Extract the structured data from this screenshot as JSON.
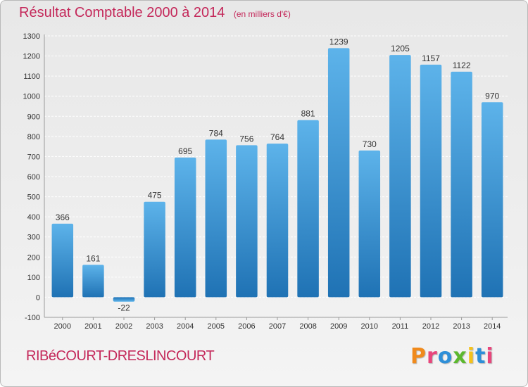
{
  "header": {
    "title": "Résultat Comptable 2000 à 2014",
    "subtitle": "(en milliers d'€)"
  },
  "footer": {
    "commune": "RIBéCOURT-DRESLINCOURT",
    "logo_text": "Proxiti",
    "logo_colors": [
      "#f08a1c",
      "#e8467c",
      "#2e8fd8",
      "#5cb82e",
      "#f5c21b",
      "#2e8fd8",
      "#e8467c"
    ]
  },
  "colors": {
    "bar_top": "#5db3ea",
    "bar_bottom": "#1f72b4",
    "grid": "#ffffff",
    "axis_text": "#333333",
    "accent": "#c4285a"
  },
  "chart_data": {
    "type": "bar",
    "title": "Résultat Comptable 2000 à 2014",
    "subtitle": "(en milliers d'€)",
    "categories": [
      "2000",
      "2001",
      "2002",
      "2003",
      "2004",
      "2005",
      "2006",
      "2007",
      "2008",
      "2009",
      "2010",
      "2011",
      "2012",
      "2013",
      "2014"
    ],
    "values": [
      366,
      161,
      -22,
      475,
      695,
      784,
      756,
      764,
      881,
      1239,
      730,
      1205,
      1157,
      1122,
      970
    ],
    "data_labels": [
      "366",
      "161",
      "-22",
      "475",
      "695",
      "784",
      "756",
      "764",
      "881",
      "1239",
      "730",
      "1205",
      "1157",
      "1122",
      "970"
    ],
    "yticks": [
      -100,
      0,
      100,
      200,
      300,
      400,
      500,
      600,
      700,
      800,
      900,
      1000,
      1100,
      1200,
      1300
    ],
    "ylim": [
      -100,
      1300
    ],
    "xlabel": "",
    "ylabel": "",
    "grid": true
  }
}
